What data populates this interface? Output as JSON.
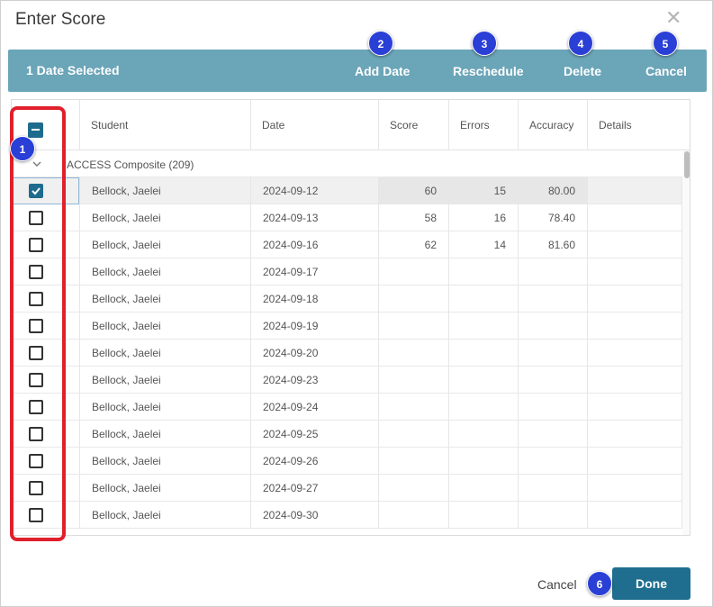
{
  "dialog": {
    "title": "Enter Score",
    "close_symbol": "✕"
  },
  "action_bar": {
    "selection_text": "1 Date Selected",
    "add_date_label": "Add Date",
    "reschedule_label": "Reschedule",
    "delete_label": "Delete",
    "cancel_label": "Cancel"
  },
  "badges": [
    "1",
    "2",
    "3",
    "4",
    "5",
    "6"
  ],
  "table": {
    "columns": [
      "Student",
      "Date",
      "Score",
      "Errors",
      "Accuracy",
      "Details"
    ],
    "group_label": "ACCESS Composite (209)",
    "rows": [
      {
        "student": "Bellock, Jaelei",
        "date": "2024-09-12",
        "score": "60",
        "errors": "15",
        "accuracy": "80.00",
        "checked": true
      },
      {
        "student": "Bellock, Jaelei",
        "date": "2024-09-13",
        "score": "58",
        "errors": "16",
        "accuracy": "78.40",
        "checked": false
      },
      {
        "student": "Bellock, Jaelei",
        "date": "2024-09-16",
        "score": "62",
        "errors": "14",
        "accuracy": "81.60",
        "checked": false
      },
      {
        "student": "Bellock, Jaelei",
        "date": "2024-09-17",
        "score": "",
        "errors": "",
        "accuracy": "",
        "checked": false
      },
      {
        "student": "Bellock, Jaelei",
        "date": "2024-09-18",
        "score": "",
        "errors": "",
        "accuracy": "",
        "checked": false
      },
      {
        "student": "Bellock, Jaelei",
        "date": "2024-09-19",
        "score": "",
        "errors": "",
        "accuracy": "",
        "checked": false
      },
      {
        "student": "Bellock, Jaelei",
        "date": "2024-09-20",
        "score": "",
        "errors": "",
        "accuracy": "",
        "checked": false
      },
      {
        "student": "Bellock, Jaelei",
        "date": "2024-09-23",
        "score": "",
        "errors": "",
        "accuracy": "",
        "checked": false
      },
      {
        "student": "Bellock, Jaelei",
        "date": "2024-09-24",
        "score": "",
        "errors": "",
        "accuracy": "",
        "checked": false
      },
      {
        "student": "Bellock, Jaelei",
        "date": "2024-09-25",
        "score": "",
        "errors": "",
        "accuracy": "",
        "checked": false
      },
      {
        "student": "Bellock, Jaelei",
        "date": "2024-09-26",
        "score": "",
        "errors": "",
        "accuracy": "",
        "checked": false
      },
      {
        "student": "Bellock, Jaelei",
        "date": "2024-09-27",
        "score": "",
        "errors": "",
        "accuracy": "",
        "checked": false
      },
      {
        "student": "Bellock, Jaelei",
        "date": "2024-09-30",
        "score": "",
        "errors": "",
        "accuracy": "",
        "checked": false
      }
    ]
  },
  "footer": {
    "cancel_label": "Cancel",
    "done_label": "Done"
  },
  "colors": {
    "action_bar": "#6ba5b8",
    "primary": "#1f6e8f",
    "badge": "#2a3fd6",
    "highlight": "#e0202c"
  }
}
